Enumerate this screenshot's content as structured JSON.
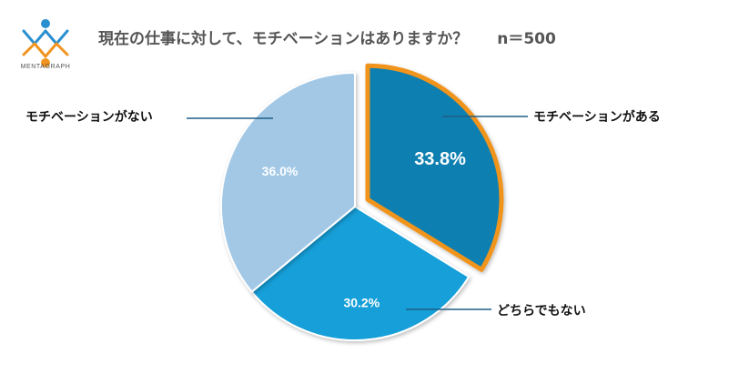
{
  "logo": {
    "name": "MENTAGRAPH"
  },
  "header": {
    "title": "現在の仕事に対して、モチベーションはありますか？",
    "sample": "n＝500"
  },
  "chart_data": {
    "type": "pie",
    "title": "現在の仕事に対して、モチベーションはありますか？",
    "n": 500,
    "slices": [
      {
        "label": "モチベーションがある",
        "value": 33.8,
        "value_label": "33.8%",
        "color": "#0a7fb0",
        "highlighted": true,
        "highlight_color": "#f0941f"
      },
      {
        "label": "どちらでもない",
        "value": 30.2,
        "value_label": "30.2%",
        "color": "#129fd8",
        "highlighted": false
      },
      {
        "label": "モチベーションがない",
        "value": 36.0,
        "value_label": "36.0%",
        "color": "#a2c8e6",
        "highlighted": false
      }
    ],
    "start_angle": "12 o'clock, clockwise",
    "legend": "external labels with leader lines"
  }
}
